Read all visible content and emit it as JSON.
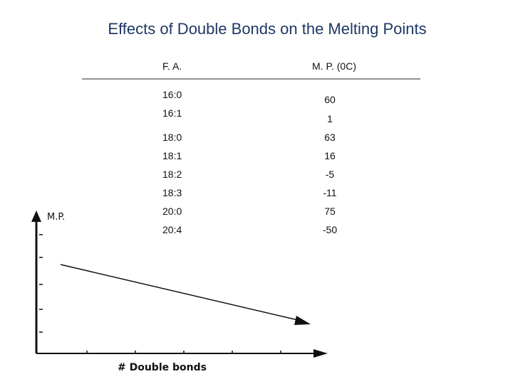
{
  "title": "Effects of Double Bonds on the Melting Points",
  "table": {
    "header": [
      "F. A.",
      "M. P. (0C)"
    ],
    "rows": [
      [
        "16:0",
        "60"
      ],
      [
        "16:1",
        "1"
      ],
      [
        "18:0",
        "63"
      ],
      [
        "18:1",
        "16"
      ],
      [
        "18:2",
        "-5"
      ],
      [
        "18:3",
        "-11"
      ],
      [
        "20:0",
        "75"
      ],
      [
        "20:4",
        "-50"
      ]
    ]
  },
  "diagram": {
    "y_label": "M.P.",
    "x_label": "# Double bonds"
  }
}
